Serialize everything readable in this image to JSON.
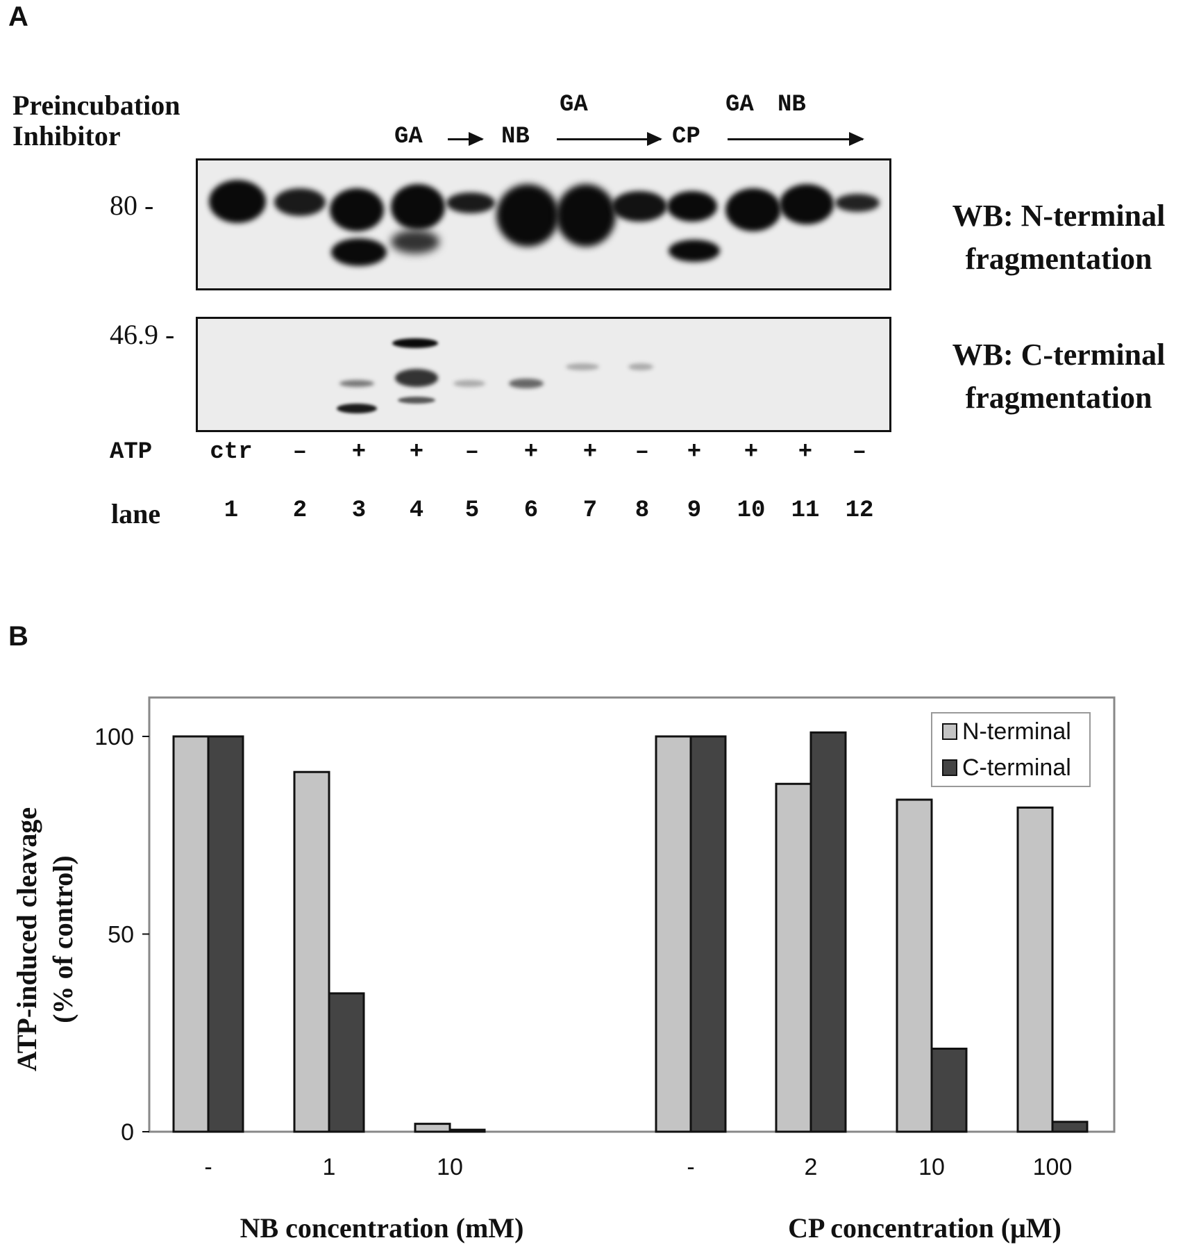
{
  "panel_a": {
    "letter": "A",
    "row_labels": [
      "Preincubation",
      "Inhibitor"
    ],
    "inhibitor_labels": {
      "ga1": "GA",
      "nb1": "NB",
      "ga2": "GA",
      "cp": "CP",
      "ga3": "GA",
      "nb2": "NB"
    },
    "mw_markers": {
      "top": "80  -",
      "bottom": "46.9 -"
    },
    "wb_n_label": [
      "WB: N-terminal",
      "fragmentation"
    ],
    "wb_c_label": [
      "WB: C-terminal",
      "fragmentation"
    ],
    "atp_label": "ATP",
    "atp_values": [
      "ctr",
      "–",
      "+",
      "+",
      "–",
      "+",
      "+",
      "–",
      "+",
      "+",
      "+",
      "–"
    ],
    "lane_label": "lane",
    "lanes": [
      "1",
      "2",
      "3",
      "4",
      "5",
      "6",
      "7",
      "8",
      "9",
      "10",
      "11",
      "12"
    ]
  },
  "panel_b": {
    "letter": "B",
    "legend": [
      "N-terminal",
      "C-terminal"
    ],
    "colors": {
      "n_terminal": "#c4c4c4",
      "c_terminal": "#444444"
    }
  },
  "chart_data": {
    "type": "bar",
    "ylabel": [
      "ATP-induced cleavage",
      "(% of control)"
    ],
    "ylim": [
      0,
      110
    ],
    "yticks": [
      "0",
      "50",
      "100"
    ],
    "groups": [
      {
        "xlabel": "NB concentration (mM)",
        "categories": [
          "-",
          "1",
          "10"
        ]
      },
      {
        "xlabel": "CP concentration (μM)",
        "categories": [
          "-",
          "2",
          "10",
          "100"
        ]
      }
    ],
    "categories": [
      "-",
      "1",
      "10",
      "-",
      "2",
      "10",
      "100"
    ],
    "series": [
      {
        "name": "N-terminal",
        "values": [
          100,
          91,
          2,
          100,
          88,
          84,
          82
        ]
      },
      {
        "name": "C-terminal",
        "values": [
          100,
          35,
          0.5,
          100,
          101,
          21,
          2.5
        ]
      }
    ],
    "legend_position": "top-right",
    "grid": false
  }
}
